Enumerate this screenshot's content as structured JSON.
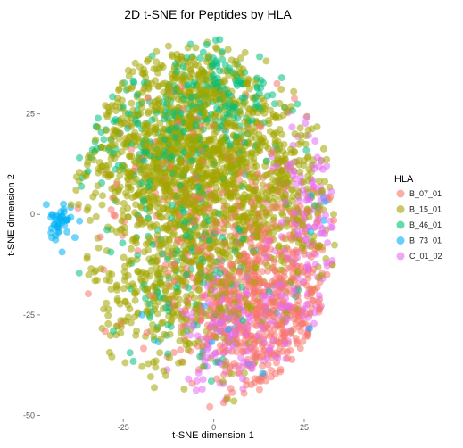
{
  "chart_data": {
    "type": "scatter",
    "title": "2D t-SNE for Peptides by HLA",
    "xlabel": "t-SNE dimension 1",
    "ylabel": "t-SNE dimension 2",
    "xlim": [
      -48,
      44
    ],
    "ylim": [
      -51,
      46
    ],
    "xticks": [
      -25,
      0,
      25
    ],
    "yticks": [
      -50,
      -25,
      0,
      25
    ],
    "grid": false,
    "legend_title": "HLA",
    "legend_position": "right",
    "series": [
      {
        "name": "B_07_01",
        "color": "#F8766D"
      },
      {
        "name": "B_15_01",
        "color": "#A3A500"
      },
      {
        "name": "B_46_01",
        "color": "#00BF7D"
      },
      {
        "name": "B_73_01",
        "color": "#00B0F6"
      },
      {
        "name": "C_01_02",
        "color": "#E76BF3"
      }
    ],
    "clusters": [
      {
        "series": "B_15_01",
        "center": [
          -10,
          16
        ],
        "spread": [
          12,
          14
        ],
        "count": 1100
      },
      {
        "series": "B_15_01",
        "center": [
          12,
          8
        ],
        "spread": [
          12,
          14
        ],
        "count": 600
      },
      {
        "series": "B_15_01",
        "center": [
          -10,
          -20
        ],
        "spread": [
          12,
          10
        ],
        "count": 350
      },
      {
        "series": "B_46_01",
        "center": [
          -14,
          20
        ],
        "spread": [
          11,
          8
        ],
        "count": 170
      },
      {
        "series": "B_46_01",
        "center": [
          4,
          30
        ],
        "spread": [
          12,
          8
        ],
        "count": 160
      },
      {
        "series": "B_46_01",
        "center": [
          -8,
          -12
        ],
        "spread": [
          14,
          12
        ],
        "count": 140
      },
      {
        "series": "B_07_01",
        "center": [
          14,
          -24
        ],
        "spread": [
          10,
          10
        ],
        "count": 500
      },
      {
        "series": "B_07_01",
        "center": [
          4,
          -10
        ],
        "spread": [
          14,
          12
        ],
        "count": 180
      },
      {
        "series": "B_07_01",
        "center": [
          0,
          10
        ],
        "spread": [
          20,
          14
        ],
        "count": 100
      },
      {
        "series": "C_01_02",
        "center": [
          27,
          0
        ],
        "spread": [
          5,
          13
        ],
        "count": 120
      },
      {
        "series": "C_01_02",
        "center": [
          3,
          -30
        ],
        "spread": [
          6,
          7
        ],
        "count": 130
      },
      {
        "series": "C_01_02",
        "center": [
          20,
          -25
        ],
        "spread": [
          9,
          6
        ],
        "count": 80
      },
      {
        "series": "B_73_01",
        "center": [
          -43,
          -2.5
        ],
        "spread": [
          1.8,
          2.4
        ],
        "count": 42
      },
      {
        "series": "B_73_01",
        "center": [
          30,
          2
        ],
        "spread": [
          2.5,
          2.5
        ],
        "count": 8
      },
      {
        "series": "B_73_01",
        "center": [
          0,
          -30
        ],
        "spread": [
          14,
          10
        ],
        "count": 12
      }
    ]
  }
}
